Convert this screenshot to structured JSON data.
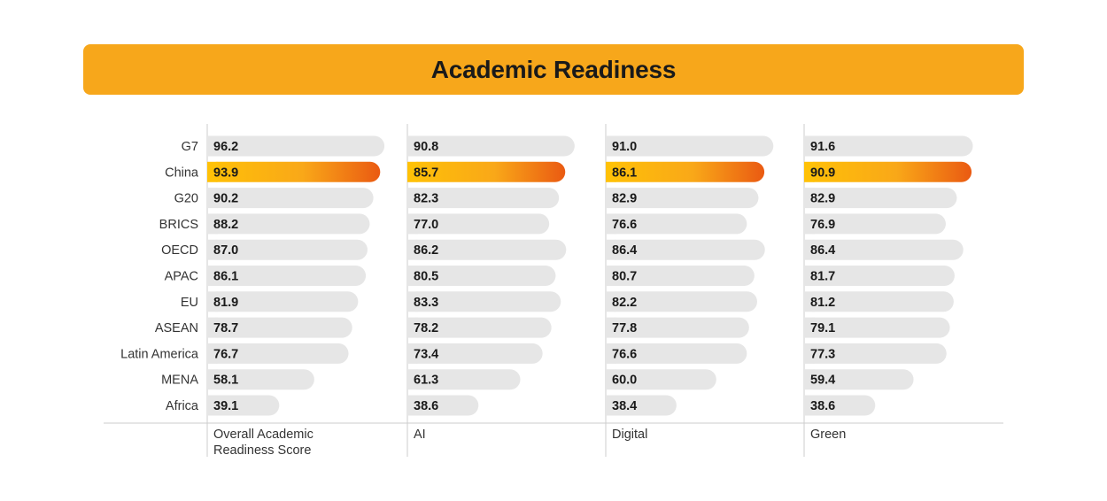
{
  "chart_data": {
    "type": "bar",
    "title": "Academic Readiness",
    "categories": [
      "G7",
      "China",
      "G20",
      "BRICS",
      "OECD",
      "APAC",
      "EU",
      "ASEAN",
      "Latin America",
      "MENA",
      "Africa"
    ],
    "highlight": "China",
    "xlim": [
      0,
      100
    ],
    "series": [
      {
        "name": "Overall Academic Readiness Score",
        "label_lines": [
          "Overall Academic",
          "Readiness Score"
        ],
        "values": [
          96.2,
          93.9,
          90.2,
          88.2,
          87.0,
          86.1,
          81.9,
          78.7,
          76.7,
          58.1,
          39.1
        ]
      },
      {
        "name": "AI",
        "label_lines": [
          "AI"
        ],
        "values": [
          90.8,
          85.7,
          82.3,
          77.0,
          86.2,
          80.5,
          83.3,
          78.2,
          73.4,
          61.3,
          38.6
        ]
      },
      {
        "name": "Digital",
        "label_lines": [
          "Digital"
        ],
        "values": [
          91.0,
          86.1,
          82.9,
          76.6,
          86.4,
          80.7,
          82.2,
          77.8,
          76.6,
          60.0,
          38.4
        ]
      },
      {
        "name": "Green",
        "label_lines": [
          "Green"
        ],
        "values": [
          91.6,
          90.9,
          82.9,
          76.9,
          86.4,
          81.7,
          81.2,
          79.1,
          77.3,
          59.4,
          38.6
        ]
      }
    ],
    "colors": {
      "banner": "#F7A71B",
      "bar": "#E6E6E6",
      "highlight_start": "#FFC107",
      "highlight_end": "#EA5A12",
      "axis": "#CCCCCC",
      "text": "#1a1a1a"
    }
  }
}
